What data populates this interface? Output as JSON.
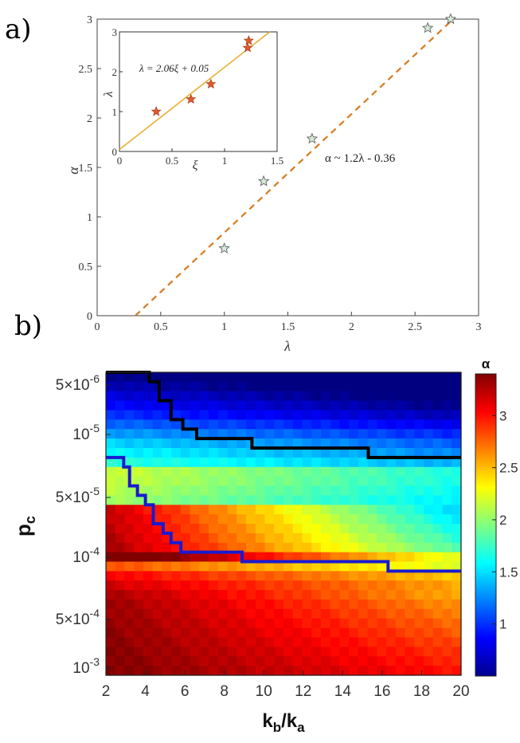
{
  "chart_data": [
    {
      "panel": "a)",
      "type": "scatter",
      "xlabel": "λ",
      "ylabel": "α",
      "xlim": [
        0,
        3
      ],
      "ylim": [
        0,
        3
      ],
      "xticks": [
        "0",
        "0.5",
        "1",
        "1.5",
        "2",
        "2.5",
        "3"
      ],
      "yticks": [
        "0",
        "0.5",
        "1",
        "1.5",
        "2",
        "2.5",
        "3"
      ],
      "series": [
        {
          "name": "data",
          "marker": "star",
          "color": "#d5ead5",
          "points": [
            [
              1.0,
              0.68
            ],
            [
              1.31,
              1.36
            ],
            [
              1.69,
              1.79
            ],
            [
              2.6,
              2.91
            ],
            [
              2.78,
              3.0
            ]
          ]
        },
        {
          "name": "fit",
          "style": "dashed",
          "color": "#d87a1e",
          "line": [
            [
              0.3,
              0.0
            ],
            [
              2.8,
              3.0
            ]
          ]
        }
      ],
      "annotation": "α ~  1.2λ - 0.36"
    },
    {
      "panel": "inset",
      "type": "scatter",
      "xlabel": "ξ",
      "ylabel": "λ",
      "xlim": [
        0,
        1.5
      ],
      "ylim": [
        0,
        3
      ],
      "xticks": [
        "0",
        "0.5",
        "1",
        "1.5"
      ],
      "yticks": [
        "0",
        "1",
        "2",
        "3"
      ],
      "series": [
        {
          "name": "data",
          "marker": "star",
          "color": "#e05a2a",
          "points": [
            [
              0.35,
              1.0
            ],
            [
              0.68,
              1.31
            ],
            [
              0.87,
              1.69
            ],
            [
              1.22,
              2.6
            ],
            [
              1.23,
              2.78
            ]
          ]
        },
        {
          "name": "fit",
          "style": "solid",
          "color": "#e8b030",
          "line": [
            [
              0.0,
              0.05
            ],
            [
              1.43,
              3.0
            ]
          ]
        }
      ],
      "annotation": "λ = 2.06ξ + 0.05"
    },
    {
      "panel": "b)",
      "type": "heatmap",
      "xlabel": "kb/ka",
      "ylabel": "pc",
      "xticks": [
        "2",
        "4",
        "6",
        "8",
        "10",
        "12",
        "14",
        "16",
        "18",
        "20"
      ],
      "xlim": [
        2,
        20
      ],
      "yticks": [
        {
          "mant": "5×10",
          "exp": "-6"
        },
        {
          "mant": "10",
          "exp": "-5"
        },
        {
          "mant": "5×10",
          "exp": "-5"
        },
        {
          "mant": "10",
          "exp": "-4"
        },
        {
          "mant": "5×10",
          "exp": "-4"
        },
        {
          "mant": "10",
          "exp": "-3"
        }
      ],
      "colorbar": {
        "label": "α",
        "ticks": [
          "1",
          "1.5",
          "2",
          "2.5",
          "3"
        ],
        "range": [
          0.5,
          3.4
        ]
      },
      "rows": 32,
      "cols": 38,
      "boundaries": [
        {
          "name": "upper",
          "color": "#000000",
          "steps": [
            [
              2.0,
              0
            ],
            [
              4.2,
              0
            ],
            [
              4.2,
              1
            ],
            [
              4.7,
              1
            ],
            [
              4.7,
              3
            ],
            [
              5.3,
              3
            ],
            [
              5.3,
              5
            ],
            [
              5.9,
              5
            ],
            [
              5.9,
              6
            ],
            [
              6.6,
              6
            ],
            [
              6.6,
              7
            ],
            [
              9.4,
              7
            ],
            [
              9.4,
              8
            ],
            [
              15.3,
              8
            ],
            [
              15.3,
              9
            ],
            [
              20.0,
              9
            ]
          ]
        },
        {
          "name": "lower",
          "color": "#1a1ad0",
          "steps": [
            [
              2.0,
              9
            ],
            [
              2.9,
              9
            ],
            [
              2.9,
              10
            ],
            [
              3.2,
              10
            ],
            [
              3.2,
              12
            ],
            [
              3.6,
              12
            ],
            [
              3.6,
              13
            ],
            [
              4.0,
              13
            ],
            [
              4.0,
              14
            ],
            [
              4.4,
              14
            ],
            [
              4.4,
              16
            ],
            [
              4.9,
              16
            ],
            [
              4.9,
              17
            ],
            [
              5.3,
              17
            ],
            [
              5.3,
              18
            ],
            [
              5.8,
              18
            ],
            [
              5.8,
              19
            ],
            [
              8.9,
              19
            ],
            [
              8.9,
              20
            ],
            [
              16.3,
              20
            ],
            [
              16.3,
              21
            ],
            [
              20.0,
              21
            ]
          ]
        }
      ]
    }
  ]
}
